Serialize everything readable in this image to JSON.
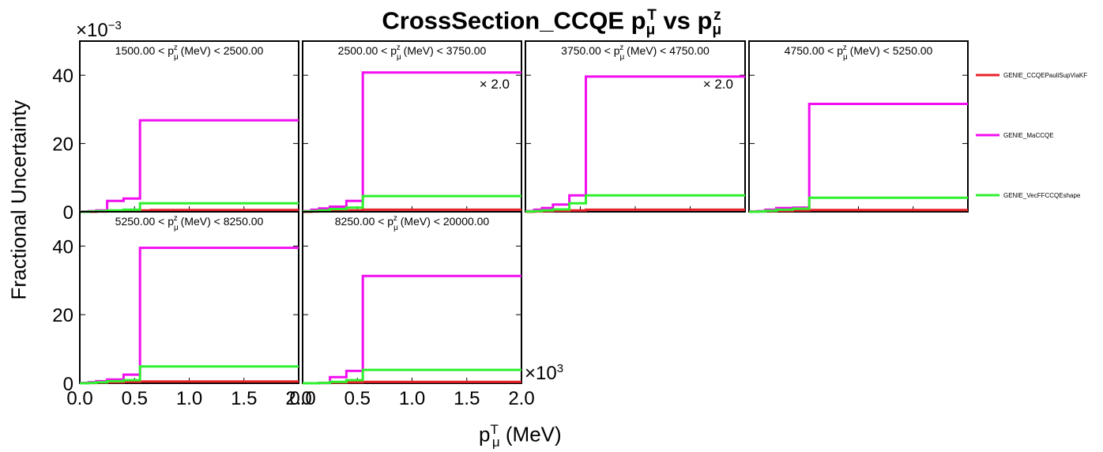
{
  "title": {
    "main": "CrossSection_CCQE p",
    "t_sub": "μ",
    "t_sup": "T",
    "vs": " vs p",
    "z_sub": "μ",
    "z_sup": "z"
  },
  "ylabel": "Fractional Uncertainty",
  "xlabel": {
    "p": "p",
    "sup": "T",
    "sub": "μ",
    "unit": " (MeV)"
  },
  "y_multiplier": "×10",
  "y_multiplier_exp": "−3",
  "x_multiplier": "×10",
  "x_multiplier_exp": "3",
  "chart_data": {
    "type": "line",
    "style": "step",
    "grid": false,
    "legend_position": "right",
    "y_ticks": [
      "0",
      "20",
      "40"
    ],
    "x_ticks": [
      "0.0",
      "0.5",
      "1.0",
      "1.5",
      "2.0"
    ],
    "xlim": [
      0,
      2000
    ],
    "ylim": [
      0,
      0.05
    ],
    "bin_edges": [
      0,
      80,
      150,
      250,
      400,
      550,
      650,
      2000
    ],
    "series_info": [
      {
        "name": "GENIE_CCQEPauliSupViaKF",
        "color": "#e8232a"
      },
      {
        "name": "GENIE_MaCCQE",
        "color": "#f20ef0"
      },
      {
        "name": "GENIE_VecFFCCQEshape",
        "color": "#2ef02e"
      }
    ],
    "panels": [
      {
        "label_pre": "1500.00 < p",
        "label_sub": "μ",
        "label_sup": "z",
        "label_post": " (MeV) < 2500.00",
        "scale": "",
        "series": [
          {
            "name": "GENIE_CCQEPauliSupViaKF",
            "values": [
              0.0,
              0.0,
              0.0001,
              0.0002,
              0.0003,
              0.0004,
              0.0005
            ]
          },
          {
            "name": "GENIE_MaCCQE",
            "values": [
              0.0001,
              0.0002,
              0.0004,
              0.0032,
              0.0039,
              0.0268,
              0.0268
            ]
          },
          {
            "name": "GENIE_VecFFCCQEshape",
            "values": [
              0.0,
              0.0001,
              0.0002,
              0.0004,
              0.0006,
              0.0025,
              0.0025
            ]
          }
        ]
      },
      {
        "label_pre": "2500.00 < p",
        "label_sub": "μ",
        "label_sup": "z",
        "label_post": " (MeV) < 3750.00",
        "scale": "× 2.0",
        "series": [
          {
            "name": "GENIE_CCQEPauliSupViaKF",
            "values": [
              0.0,
              0.0001,
              0.0002,
              0.0003,
              0.0004,
              0.0006,
              0.0006
            ]
          },
          {
            "name": "GENIE_MaCCQE",
            "values": [
              0.0002,
              0.0006,
              0.001,
              0.0015,
              0.0032,
              0.0408,
              0.0408
            ]
          },
          {
            "name": "GENIE_VecFFCCQEshape",
            "values": [
              0.0001,
              0.0002,
              0.0004,
              0.0008,
              0.0012,
              0.0046,
              0.0046
            ]
          }
        ]
      },
      {
        "label_pre": "3750.00 < p",
        "label_sub": "μ",
        "label_sup": "z",
        "label_post": " (MeV) < 4750.00",
        "scale": "× 2.0",
        "series": [
          {
            "name": "GENIE_CCQEPauliSupViaKF",
            "values": [
              0.0,
              0.0001,
              0.0002,
              0.0003,
              0.0004,
              0.0006,
              0.0006
            ]
          },
          {
            "name": "GENIE_MaCCQE",
            "values": [
              0.0002,
              0.0006,
              0.0011,
              0.0021,
              0.0048,
              0.0396,
              0.0396
            ]
          },
          {
            "name": "GENIE_VecFFCCQEshape",
            "values": [
              0.0001,
              0.0002,
              0.0004,
              0.0007,
              0.0025,
              0.0048,
              0.0048
            ]
          }
        ]
      },
      {
        "label_pre": "4750.00 < p",
        "label_sub": "μ",
        "label_sup": "z",
        "label_post": " (MeV) < 5250.00",
        "scale": "",
        "series": [
          {
            "name": "GENIE_CCQEPauliSupViaKF",
            "values": [
              0.0,
              0.0001,
              0.0002,
              0.0003,
              0.0004,
              0.0005,
              0.0005
            ]
          },
          {
            "name": "GENIE_MaCCQE",
            "values": [
              0.0001,
              0.0002,
              0.0006,
              0.0011,
              0.0012,
              0.0316,
              0.0316
            ]
          },
          {
            "name": "GENIE_VecFFCCQEshape",
            "values": [
              0.0,
              0.0001,
              0.0003,
              0.0006,
              0.0009,
              0.0041,
              0.0041
            ]
          }
        ]
      },
      {
        "label_pre": "5250.00 < p",
        "label_sub": "μ",
        "label_sup": "z",
        "label_post": " (MeV) < 8250.00",
        "scale": "",
        "series": [
          {
            "name": "GENIE_CCQEPauliSupViaKF",
            "values": [
              0.0,
              0.0001,
              0.0002,
              0.0003,
              0.0004,
              0.0005,
              0.0005
            ]
          },
          {
            "name": "GENIE_MaCCQE",
            "values": [
              0.0001,
              0.0003,
              0.0006,
              0.0011,
              0.0025,
              0.0395,
              0.0395
            ]
          },
          {
            "name": "GENIE_VecFFCCQEshape",
            "values": [
              0.0,
              0.0001,
              0.0003,
              0.0006,
              0.0009,
              0.0049,
              0.0049
            ]
          }
        ]
      },
      {
        "label_pre": "8250.00 < p",
        "label_sub": "μ",
        "label_sup": "z",
        "label_post": " (MeV) < 20000.00",
        "scale": "",
        "series": [
          {
            "name": "GENIE_CCQEPauliSupViaKF",
            "values": [
              0.0,
              0.0,
              0.0001,
              0.0002,
              0.0003,
              0.0004,
              0.0004
            ]
          },
          {
            "name": "GENIE_MaCCQE",
            "values": [
              0.0,
              0.0,
              0.0001,
              0.0018,
              0.0036,
              0.0313,
              0.0313
            ]
          },
          {
            "name": "GENIE_VecFFCCQEshape",
            "values": [
              0.0,
              0.0,
              0.0001,
              0.0004,
              0.0009,
              0.0039,
              0.0039
            ]
          }
        ]
      }
    ]
  }
}
